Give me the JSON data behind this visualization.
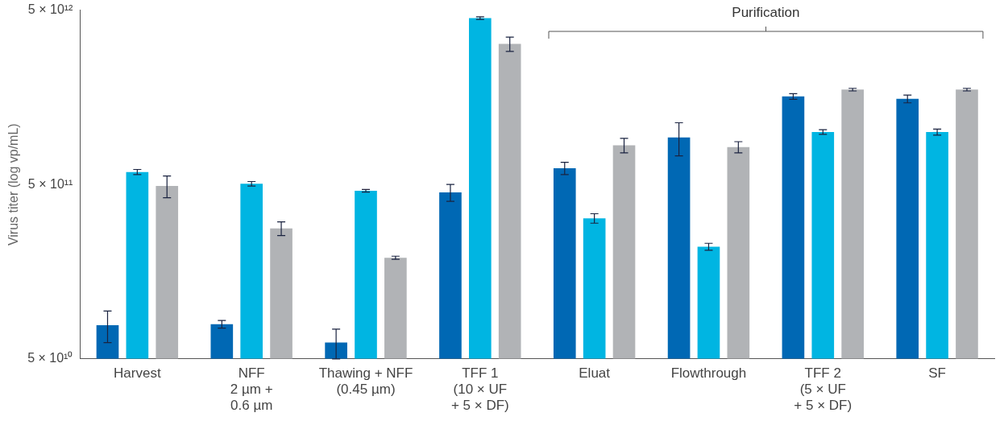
{
  "chart_data": {
    "type": "bar",
    "ylabel": "Virus titer (log vp/mL)",
    "categories": [
      "Harvest",
      "NFF\n2 µm +\n0.6 µm",
      "Thawing + NFF\n(0.45 µm)",
      "TFF 1\n(10 × UF\n+ 5 × DF)",
      "Eluat",
      "Flowthrough",
      "TFF 2\n(5 × UF\n+ 5 × DF)",
      "SF"
    ],
    "series": [
      {
        "color": "#0068b4",
        "values": [
          78000000000.0,
          79000000000.0,
          62000000000.0,
          450000000000.0,
          620000000000.0,
          930000000000.0,
          1600000000000.0,
          1550000000000.0
        ],
        "errors": [
          16000000000.0,
          4000000000.0,
          12000000000.0,
          50000000000.0,
          50000000000.0,
          200000000000.0,
          60000000000.0,
          80000000000.0
        ]
      },
      {
        "color": "#00b5e2",
        "values": [
          590000000000.0,
          505000000000.0,
          460000000000.0,
          4500000000000.0,
          320000000000.0,
          220000000000.0,
          1000000000000.0,
          1000000000000.0
        ],
        "errors": [
          20000000000.0,
          15000000000.0,
          8000000000.0,
          80000000000.0,
          20000000000.0,
          10000000000.0,
          30000000000.0,
          40000000000.0
        ]
      },
      {
        "color": "#b1b3b6",
        "values": [
          490000000000.0,
          280000000000.0,
          190000000000.0,
          3200000000000.0,
          840000000000.0,
          820000000000.0,
          1750000000000.0,
          1750000000000.0
        ],
        "errors": [
          70000000000.0,
          25000000000.0,
          4000000000.0,
          300000000000.0,
          80000000000.0,
          60000000000.0,
          30000000000.0,
          30000000000.0
        ]
      }
    ],
    "log": "y",
    "ylim": [
      50000000000.0,
      5000000000000.0
    ],
    "yticks": [
      {
        "value": 50000000000.0,
        "label": "5 × 10¹⁰"
      },
      {
        "value": 500000000000.0,
        "label": "5 × 10¹¹"
      },
      {
        "value": 5000000000000.0,
        "label": "5 × 10¹²"
      }
    ],
    "grid": false,
    "legend": false,
    "annotations": [
      "Purification"
    ]
  }
}
